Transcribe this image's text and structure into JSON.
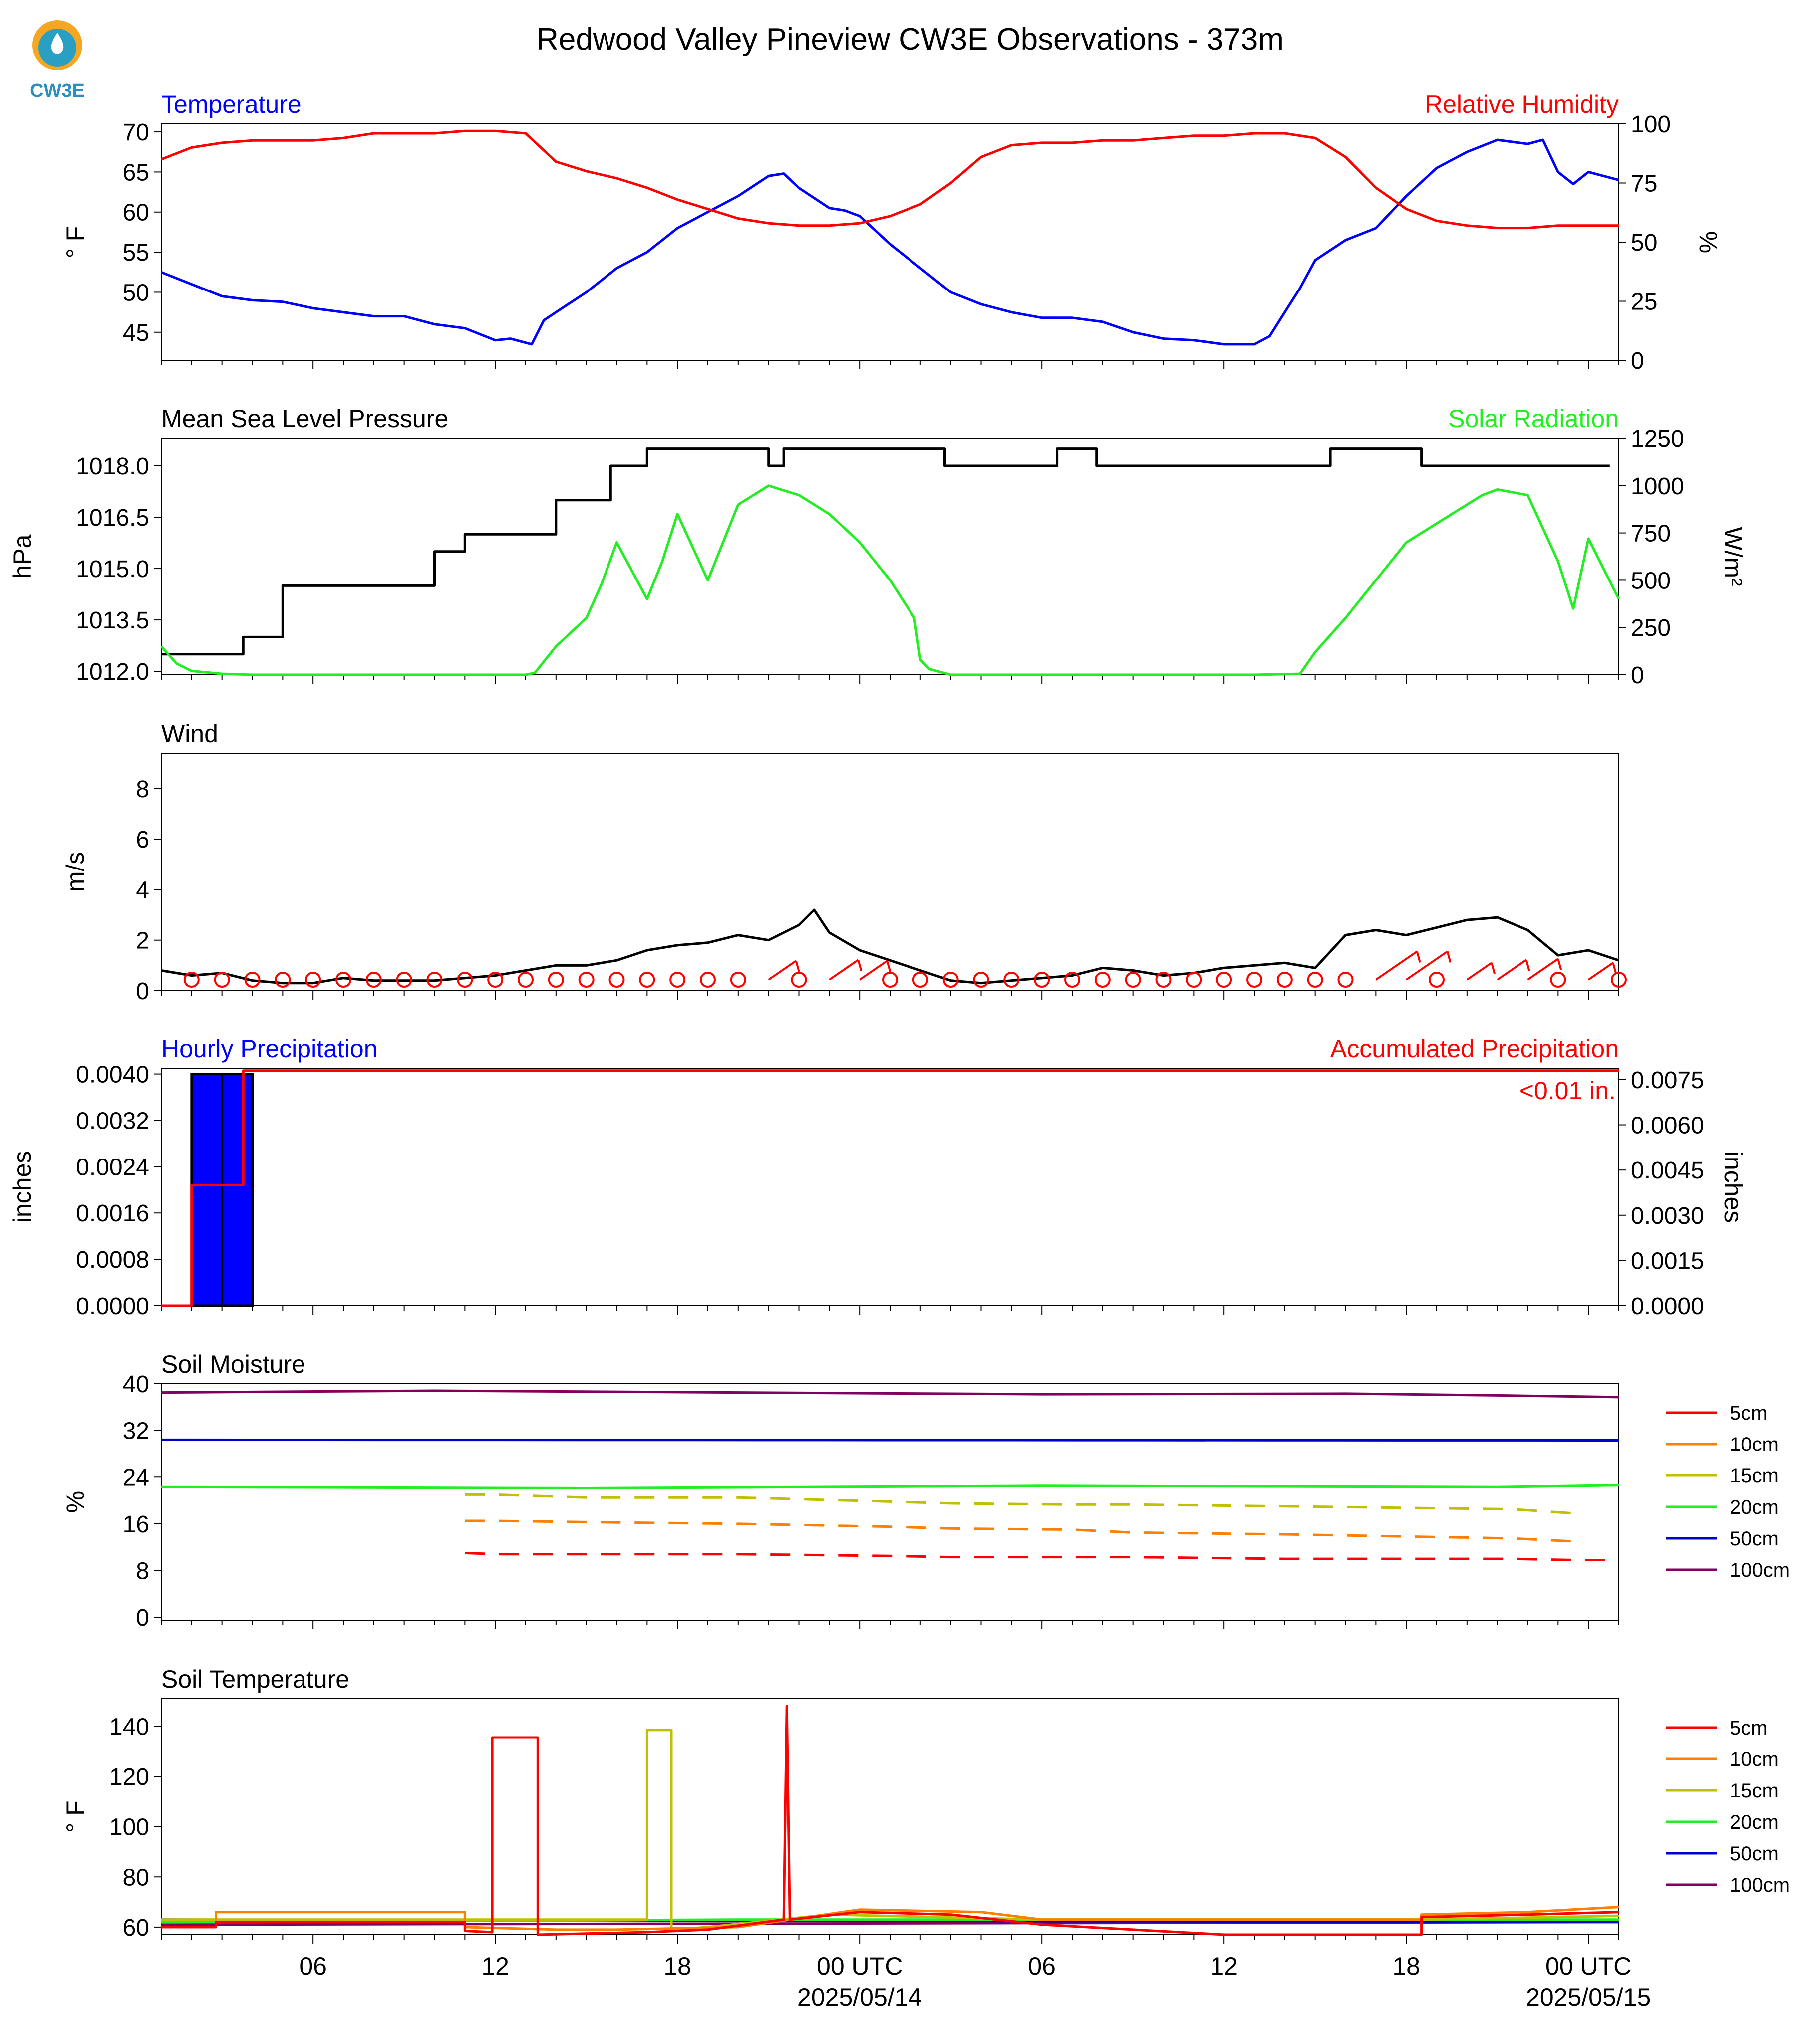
{
  "header": {
    "title": "Redwood Valley Pineview CW3E Observations - 373m",
    "logo_text": "CW3E"
  },
  "time_axis": {
    "tick_labels": [
      "06",
      "12",
      "18",
      "00 UTC",
      "06",
      "12",
      "18",
      "00 UTC"
    ],
    "tick_hours": [
      6,
      12,
      18,
      24,
      30,
      36,
      42,
      48
    ],
    "date_labels": [
      {
        "text": "2025/05/14",
        "hour": 24
      },
      {
        "text": "2025/05/15",
        "hour": 48
      }
    ],
    "range_hours": [
      1,
      49
    ]
  },
  "colors": {
    "temperature": "#0000ff",
    "humidity": "#ff0000",
    "pressure": "#000000",
    "solar": "#22ee22",
    "wind": "#000000",
    "wind_barbs": "#ff0000",
    "precip_bar": "#0000ff",
    "precip_accum": "#ff0000",
    "depth_5cm": "#ff0000",
    "depth_10cm": "#ff8000",
    "depth_15cm": "#c0c000",
    "depth_20cm": "#22ee22",
    "depth_50cm": "#0000cc",
    "depth_100cm": "#800060"
  },
  "chart_data": [
    {
      "id": "temp_rh",
      "type": "line",
      "left_title": "Temperature",
      "right_title": "Relative Humidity",
      "ylabel_left": "° F",
      "ylabel_right": "%",
      "ylim_left": [
        41.5,
        71
      ],
      "ylim_right": [
        0,
        100
      ],
      "yticks_left": [
        "45",
        "50",
        "55",
        "60",
        "65",
        "70"
      ],
      "yticks_right": [
        "0",
        "25",
        "50",
        "75",
        "100"
      ],
      "series": [
        {
          "name": "Temperature",
          "axis": "left",
          "x": [
            1,
            2,
            3,
            4,
            5,
            6,
            7,
            8,
            9,
            10,
            11,
            12,
            12.5,
            13.2,
            13.6,
            14,
            15,
            16,
            17,
            18,
            19,
            20,
            21,
            21.5,
            22,
            23,
            23.5,
            24,
            25,
            26,
            27,
            28,
            29,
            30,
            31,
            32,
            33,
            34,
            35,
            36,
            37,
            37.5,
            38,
            38.5,
            39,
            40,
            41,
            42,
            43,
            44,
            45,
            46,
            46.5,
            47,
            47.5,
            48,
            49
          ],
          "y": [
            52.5,
            51,
            49.5,
            49,
            48.8,
            48,
            47.5,
            47,
            47,
            46,
            45.5,
            44,
            44.2,
            43.5,
            46.5,
            47.5,
            50,
            53,
            55,
            58,
            60,
            62,
            64.5,
            64.8,
            63,
            60.5,
            60.2,
            59.5,
            56,
            53,
            50,
            48.5,
            47.5,
            46.8,
            46.8,
            46.3,
            45,
            44.2,
            44,
            43.5,
            43.5,
            44.5,
            47.5,
            50.5,
            54,
            56.5,
            58,
            62,
            65.5,
            67.5,
            69,
            68.5,
            69,
            65,
            63.5,
            65,
            64
          ]
        },
        {
          "name": "Relative Humidity",
          "axis": "right",
          "x": [
            1,
            2,
            3,
            4,
            5,
            6,
            7,
            8,
            9,
            10,
            11,
            12,
            13,
            14,
            15,
            16,
            17,
            18,
            19,
            20,
            21,
            22,
            23,
            24,
            25,
            26,
            27,
            28,
            29,
            30,
            31,
            32,
            33,
            34,
            35,
            36,
            37,
            38,
            39,
            40,
            41,
            42,
            43,
            44,
            45,
            46,
            47,
            48,
            49
          ],
          "y": [
            85,
            90,
            92,
            93,
            93,
            93,
            94,
            96,
            96,
            96,
            97,
            97,
            96,
            84,
            80,
            77,
            73,
            68,
            64,
            60,
            58,
            57,
            57,
            58,
            61,
            66,
            75,
            86,
            91,
            92,
            92,
            93,
            93,
            94,
            95,
            95,
            96,
            96,
            94,
            86,
            73,
            64,
            59,
            57,
            56,
            56,
            57,
            57,
            57
          ]
        }
      ]
    },
    {
      "id": "pressure_solar",
      "type": "line",
      "left_title": "Mean Sea Level Pressure",
      "right_title": "Solar Radiation",
      "ylabel_left": "hPa",
      "ylabel_right": "W/m²",
      "ylim_left": [
        1011.9,
        1018.8
      ],
      "ylim_right": [
        0,
        1250
      ],
      "yticks_left": [
        "1012.0",
        "1013.5",
        "1015.0",
        "1016.5",
        "1018.0"
      ],
      "yticks_right": [
        "0",
        "250",
        "500",
        "750",
        "1000",
        "1250"
      ],
      "series": [
        {
          "name": "Mean Sea Level Pressure",
          "axis": "left",
          "step": true,
          "x": [
            1,
            3.7,
            3.7,
            5,
            5,
            10,
            10,
            11,
            11,
            14,
            14,
            15.8,
            15.8,
            17,
            17,
            21,
            21,
            21.5,
            21.5,
            26.8,
            26.8,
            30.5,
            30.5,
            31.8,
            31.8,
            39.5,
            39.5,
            42.5,
            42.5,
            48.7
          ],
          "y": [
            1012.5,
            1012.5,
            1013.0,
            1013.0,
            1014.5,
            1014.5,
            1015.5,
            1015.5,
            1016.0,
            1016.0,
            1017.0,
            1017.0,
            1018.0,
            1018.0,
            1018.5,
            1018.5,
            1018.0,
            1018.0,
            1018.5,
            1018.5,
            1018.0,
            1018.0,
            1018.5,
            1018.5,
            1018.0,
            1018.0,
            1018.5,
            1018.5,
            1018.0,
            1018.0
          ]
        },
        {
          "name": "Solar Radiation",
          "axis": "right",
          "x": [
            1,
            1.5,
            2,
            3,
            4,
            10,
            13,
            13.3,
            14,
            15,
            15.5,
            16,
            17,
            17.5,
            18,
            19,
            20,
            21,
            22,
            23,
            24,
            25,
            25.8,
            26,
            26.3,
            27,
            37,
            38.5,
            39,
            40,
            41,
            42,
            43,
            44,
            44.5,
            45,
            46,
            47,
            47.5,
            48,
            49
          ],
          "y": [
            150,
            60,
            20,
            5,
            0,
            0,
            0,
            10,
            150,
            300,
            480,
            700,
            400,
            600,
            850,
            500,
            900,
            1000,
            950,
            850,
            700,
            500,
            300,
            80,
            30,
            0,
            0,
            5,
            120,
            300,
            500,
            700,
            800,
            900,
            950,
            980,
            950,
            600,
            350,
            720,
            400
          ]
        }
      ]
    },
    {
      "id": "wind",
      "type": "line",
      "left_title": "Wind",
      "ylabel_left": "m/s",
      "ylim_left": [
        0,
        9.4
      ],
      "yticks_left": [
        "0",
        "2",
        "4",
        "6",
        "8"
      ],
      "series": [
        {
          "name": "Wind",
          "x": [
            1,
            2,
            3,
            4,
            5,
            6,
            7,
            8,
            9,
            10,
            11,
            12,
            13,
            14,
            15,
            16,
            17,
            18,
            19,
            20,
            21,
            22,
            22.5,
            23,
            24,
            25,
            26,
            27,
            28,
            29,
            30,
            31,
            32,
            33,
            34,
            35,
            36,
            37,
            38,
            39,
            40,
            41,
            42,
            43,
            44,
            45,
            46,
            47,
            48,
            49
          ],
          "y": [
            0.8,
            0.6,
            0.7,
            0.4,
            0.3,
            0.3,
            0.5,
            0.4,
            0.4,
            0.4,
            0.5,
            0.6,
            0.8,
            1.0,
            1.0,
            1.2,
            1.6,
            1.8,
            1.9,
            2.2,
            2.0,
            2.6,
            3.2,
            2.3,
            1.6,
            1.2,
            0.8,
            0.4,
            0.3,
            0.4,
            0.5,
            0.6,
            0.9,
            0.8,
            0.6,
            0.7,
            0.9,
            1.0,
            1.1,
            0.9,
            2.2,
            2.4,
            2.2,
            2.5,
            2.8,
            2.9,
            2.4,
            1.4,
            1.6,
            1.2
          ]
        },
        {
          "name": "Wind barbs",
          "marker": "barb",
          "x": [
            2,
            3,
            4,
            5,
            6,
            7,
            8,
            9,
            10,
            11,
            12,
            13,
            14,
            15,
            16,
            17,
            18,
            19,
            20,
            21,
            22,
            23,
            24,
            25,
            26,
            27,
            28,
            29,
            30,
            31,
            32,
            33,
            34,
            35,
            36,
            37,
            38,
            39,
            40,
            41,
            42,
            43,
            44,
            45,
            46,
            47,
            48,
            49
          ],
          "y": [
            0.5,
            0.9,
            0.3,
            0.2,
            0.1,
            0.3,
            0.1,
            0.2,
            0.3,
            0.2,
            0.1,
            0.9,
            1.0,
            0.8,
            0.9,
            1.0,
            1.1,
            1.0,
            1.1,
            1.6,
            0.7,
            1.8,
            1.6,
            0.9,
            0.8,
            0.3,
            0.1,
            0.2,
            0.3,
            0.2,
            1.0,
            0.3,
            0.3,
            0.2,
            0.3,
            1.0,
            1.0,
            0.8,
            0.3,
            3.5,
            3.5,
            1.0,
            1.2,
            1.8,
            2.0,
            0.9,
            1.2,
            0.4
          ]
        }
      ]
    },
    {
      "id": "precip",
      "type": "bar",
      "left_title": "Hourly Precipitation",
      "right_title": "Accumulated Precipitation",
      "annotation": "<0.01 in.",
      "ylabel_left": "inches",
      "ylabel_right": "inches",
      "ylim_left": [
        0,
        0.0041
      ],
      "ylim_right": [
        0,
        0.00788
      ],
      "yticks_left": [
        "0.0000",
        "0.0008",
        "0.0016",
        "0.0024",
        "0.0032",
        "0.0040"
      ],
      "yticks_right": [
        "0.0000",
        "0.0015",
        "0.0030",
        "0.0045",
        "0.0060",
        "0.0075"
      ],
      "series": [
        {
          "name": "Hourly Precipitation",
          "axis": "left",
          "bar_x": [
            2.5,
            3.5
          ],
          "bar_values": [
            0.004,
            0.004
          ]
        },
        {
          "name": "Accumulated Precipitation",
          "axis": "right",
          "step": true,
          "x": [
            1,
            2,
            2,
            3.7,
            3.7,
            49
          ],
          "y": [
            0,
            0,
            0.004,
            0.004,
            0.0078,
            0.0078
          ]
        }
      ]
    },
    {
      "id": "soil_moisture",
      "type": "line",
      "left_title": "Soil Moisture",
      "ylabel_left": "%",
      "ylim_left": [
        -0.5,
        40
      ],
      "yticks_left": [
        "0",
        "8",
        "16",
        "24",
        "32",
        "40"
      ],
      "legend": [
        "5cm",
        "10cm",
        "15cm",
        "20cm",
        "50cm",
        "100cm"
      ],
      "series": [
        {
          "name": "100cm",
          "x": [
            1,
            10,
            20,
            30,
            40,
            45,
            49
          ],
          "y": [
            38.5,
            38.8,
            38.5,
            38.2,
            38.3,
            38.0,
            37.7
          ]
        },
        {
          "name": "50cm",
          "x": [
            1,
            49
          ],
          "y": [
            30.4,
            30.3
          ]
        },
        {
          "name": "20cm",
          "x": [
            1,
            15,
            30,
            45,
            49
          ],
          "y": [
            22.3,
            22.1,
            22.5,
            22.3,
            22.6
          ]
        },
        {
          "name": "15cm",
          "dashed": true,
          "x": [
            11,
            12,
            15,
            20,
            25,
            27,
            31,
            33,
            38,
            45.5,
            47.5
          ],
          "y": [
            21,
            21,
            20.5,
            20.5,
            19.8,
            19.5,
            19.3,
            19.3,
            19.0,
            18.5,
            17.8
          ]
        },
        {
          "name": "10cm",
          "dashed": true,
          "x": [
            11,
            12,
            15,
            20,
            25,
            27,
            31,
            33,
            38,
            45.5,
            47.5
          ],
          "y": [
            16.5,
            16.5,
            16.3,
            16.0,
            15.5,
            15.2,
            15.0,
            14.5,
            14.2,
            13.5,
            13.0
          ]
        },
        {
          "name": "5cm",
          "dashed": true,
          "x": [
            11,
            12,
            15,
            20,
            25,
            27,
            31,
            33,
            38,
            45.5,
            47.5,
            49
          ],
          "y": [
            11,
            10.8,
            10.8,
            10.8,
            10.5,
            10.3,
            10.3,
            10.3,
            10.0,
            10.0,
            9.8,
            9.8
          ]
        }
      ]
    },
    {
      "id": "soil_temperature",
      "type": "line",
      "left_title": "Soil Temperature",
      "ylabel_left": "° F",
      "ylim_left": [
        57,
        151
      ],
      "yticks_left": [
        "60",
        "80",
        "100",
        "120",
        "140"
      ],
      "legend": [
        "5cm",
        "10cm",
        "15cm",
        "20cm",
        "50cm",
        "100cm"
      ],
      "series": [
        {
          "name": "100cm",
          "x": [
            1,
            49
          ],
          "y": [
            61,
            62
          ]
        },
        {
          "name": "50cm",
          "x": [
            1,
            49
          ],
          "y": [
            63,
            62
          ]
        },
        {
          "name": "20cm",
          "x": [
            1,
            20,
            30,
            49
          ],
          "y": [
            62,
            63,
            63,
            63
          ]
        },
        {
          "name": "15cm",
          "x": [
            1,
            17,
            17,
            17.8,
            17.8,
            19,
            23,
            30,
            42.5,
            49
          ],
          "y": [
            63,
            63,
            138.5,
            138.5,
            59,
            60,
            65,
            63,
            63,
            64.5
          ]
        },
        {
          "name": "10cm",
          "x": [
            1,
            2.8,
            2.8,
            11,
            11,
            14,
            16,
            20,
            24,
            28,
            30,
            42.5,
            42.5,
            46,
            49
          ],
          "y": [
            60,
            60,
            66,
            66,
            60,
            59,
            59,
            60,
            67,
            66,
            63,
            63,
            65,
            66,
            68
          ]
        },
        {
          "name": "5cm",
          "x": [
            1,
            2.8,
            2.8,
            11,
            11,
            11.9,
            11.9,
            13.4,
            13.4,
            17,
            19,
            21.5,
            21.6,
            21.7,
            24,
            27,
            30,
            36,
            42.5,
            42.5,
            46,
            49
          ],
          "y": [
            60,
            60,
            62,
            62,
            58.5,
            58,
            135.5,
            135.5,
            57,
            58,
            59,
            63,
            148,
            63,
            66,
            65,
            61,
            57,
            57,
            64,
            65,
            66
          ]
        }
      ]
    }
  ]
}
